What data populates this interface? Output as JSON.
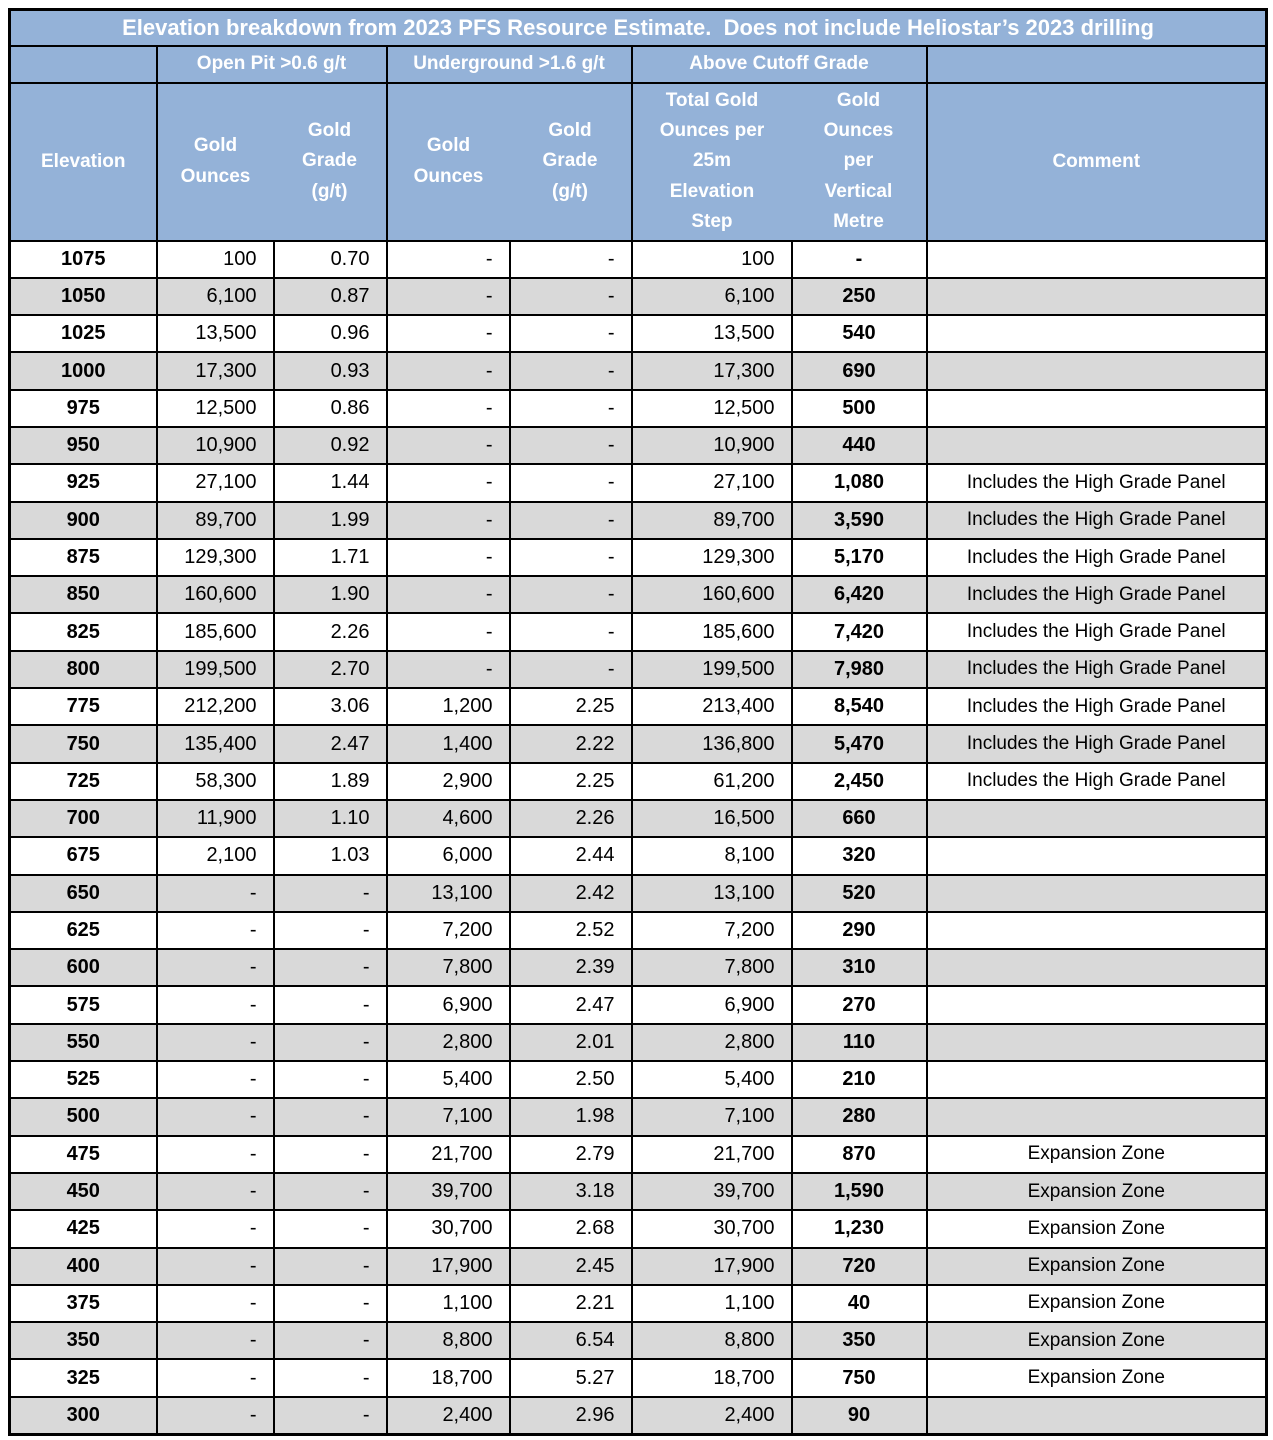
{
  "colors": {
    "header_blue": "#94b2d8",
    "stripe_gray": "#d9d9d9",
    "border_black": "#000000",
    "header_text": "#ffffff",
    "data_text": "#000000"
  },
  "chart_data": {
    "type": "table",
    "title": "Elevation breakdown from 2023 PFS Resource Estimate.  Does not include Heliostar’s 2023 drilling",
    "column_groups": [
      "Open Pit >0.6 g/t",
      "Underground >1.6 g/t",
      "Above Cutoff Grade"
    ],
    "columns": [
      "Elevation",
      "Gold Ounces",
      "Gold Grade (g/t)",
      "Gold Ounces",
      "Gold Grade (g/t)",
      "Total Gold Ounces per 25m Elevation Step",
      "Gold Ounces per Vertical Metre",
      "Comment"
    ],
    "rows": [
      [
        "1075",
        "100",
        "0.70",
        "-",
        "-",
        "100",
        "-",
        ""
      ],
      [
        "1050",
        "6,100",
        "0.87",
        "-",
        "-",
        "6,100",
        "250",
        ""
      ],
      [
        "1025",
        "13,500",
        "0.96",
        "-",
        "-",
        "13,500",
        "540",
        ""
      ],
      [
        "1000",
        "17,300",
        "0.93",
        "-",
        "-",
        "17,300",
        "690",
        ""
      ],
      [
        "975",
        "12,500",
        "0.86",
        "-",
        "-",
        "12,500",
        "500",
        ""
      ],
      [
        "950",
        "10,900",
        "0.92",
        "-",
        "-",
        "10,900",
        "440",
        ""
      ],
      [
        "925",
        "27,100",
        "1.44",
        "-",
        "-",
        "27,100",
        "1,080",
        "Includes the High Grade Panel"
      ],
      [
        "900",
        "89,700",
        "1.99",
        "-",
        "-",
        "89,700",
        "3,590",
        "Includes the High Grade Panel"
      ],
      [
        "875",
        "129,300",
        "1.71",
        "-",
        "-",
        "129,300",
        "5,170",
        "Includes the High Grade Panel"
      ],
      [
        "850",
        "160,600",
        "1.90",
        "-",
        "-",
        "160,600",
        "6,420",
        "Includes the High Grade Panel"
      ],
      [
        "825",
        "185,600",
        "2.26",
        "-",
        "-",
        "185,600",
        "7,420",
        "Includes the High Grade Panel"
      ],
      [
        "800",
        "199,500",
        "2.70",
        "-",
        "-",
        "199,500",
        "7,980",
        "Includes the High Grade Panel"
      ],
      [
        "775",
        "212,200",
        "3.06",
        "1,200",
        "2.25",
        "213,400",
        "8,540",
        "Includes the High Grade Panel"
      ],
      [
        "750",
        "135,400",
        "2.47",
        "1,400",
        "2.22",
        "136,800",
        "5,470",
        "Includes the High Grade Panel"
      ],
      [
        "725",
        "58,300",
        "1.89",
        "2,900",
        "2.25",
        "61,200",
        "2,450",
        "Includes the High Grade Panel"
      ],
      [
        "700",
        "11,900",
        "1.10",
        "4,600",
        "2.26",
        "16,500",
        "660",
        ""
      ],
      [
        "675",
        "2,100",
        "1.03",
        "6,000",
        "2.44",
        "8,100",
        "320",
        ""
      ],
      [
        "650",
        "-",
        "-",
        "13,100",
        "2.42",
        "13,100",
        "520",
        ""
      ],
      [
        "625",
        "-",
        "-",
        "7,200",
        "2.52",
        "7,200",
        "290",
        ""
      ],
      [
        "600",
        "-",
        "-",
        "7,800",
        "2.39",
        "7,800",
        "310",
        ""
      ],
      [
        "575",
        "-",
        "-",
        "6,900",
        "2.47",
        "6,900",
        "270",
        ""
      ],
      [
        "550",
        "-",
        "-",
        "2,800",
        "2.01",
        "2,800",
        "110",
        ""
      ],
      [
        "525",
        "-",
        "-",
        "5,400",
        "2.50",
        "5,400",
        "210",
        ""
      ],
      [
        "500",
        "-",
        "-",
        "7,100",
        "1.98",
        "7,100",
        "280",
        ""
      ],
      [
        "475",
        "-",
        "-",
        "21,700",
        "2.79",
        "21,700",
        "870",
        "Expansion Zone"
      ],
      [
        "450",
        "-",
        "-",
        "39,700",
        "3.18",
        "39,700",
        "1,590",
        "Expansion Zone"
      ],
      [
        "425",
        "-",
        "-",
        "30,700",
        "2.68",
        "30,700",
        "1,230",
        "Expansion Zone"
      ],
      [
        "400",
        "-",
        "-",
        "17,900",
        "2.45",
        "17,900",
        "720",
        "Expansion Zone"
      ],
      [
        "375",
        "-",
        "-",
        "1,100",
        "2.21",
        "1,100",
        "40",
        "Expansion Zone"
      ],
      [
        "350",
        "-",
        "-",
        "8,800",
        "6.54",
        "8,800",
        "350",
        "Expansion Zone"
      ],
      [
        "325",
        "-",
        "-",
        "18,700",
        "5.27",
        "18,700",
        "750",
        "Expansion Zone"
      ],
      [
        "300",
        "-",
        "-",
        "2,400",
        "2.96",
        "2,400",
        "90",
        ""
      ]
    ]
  }
}
